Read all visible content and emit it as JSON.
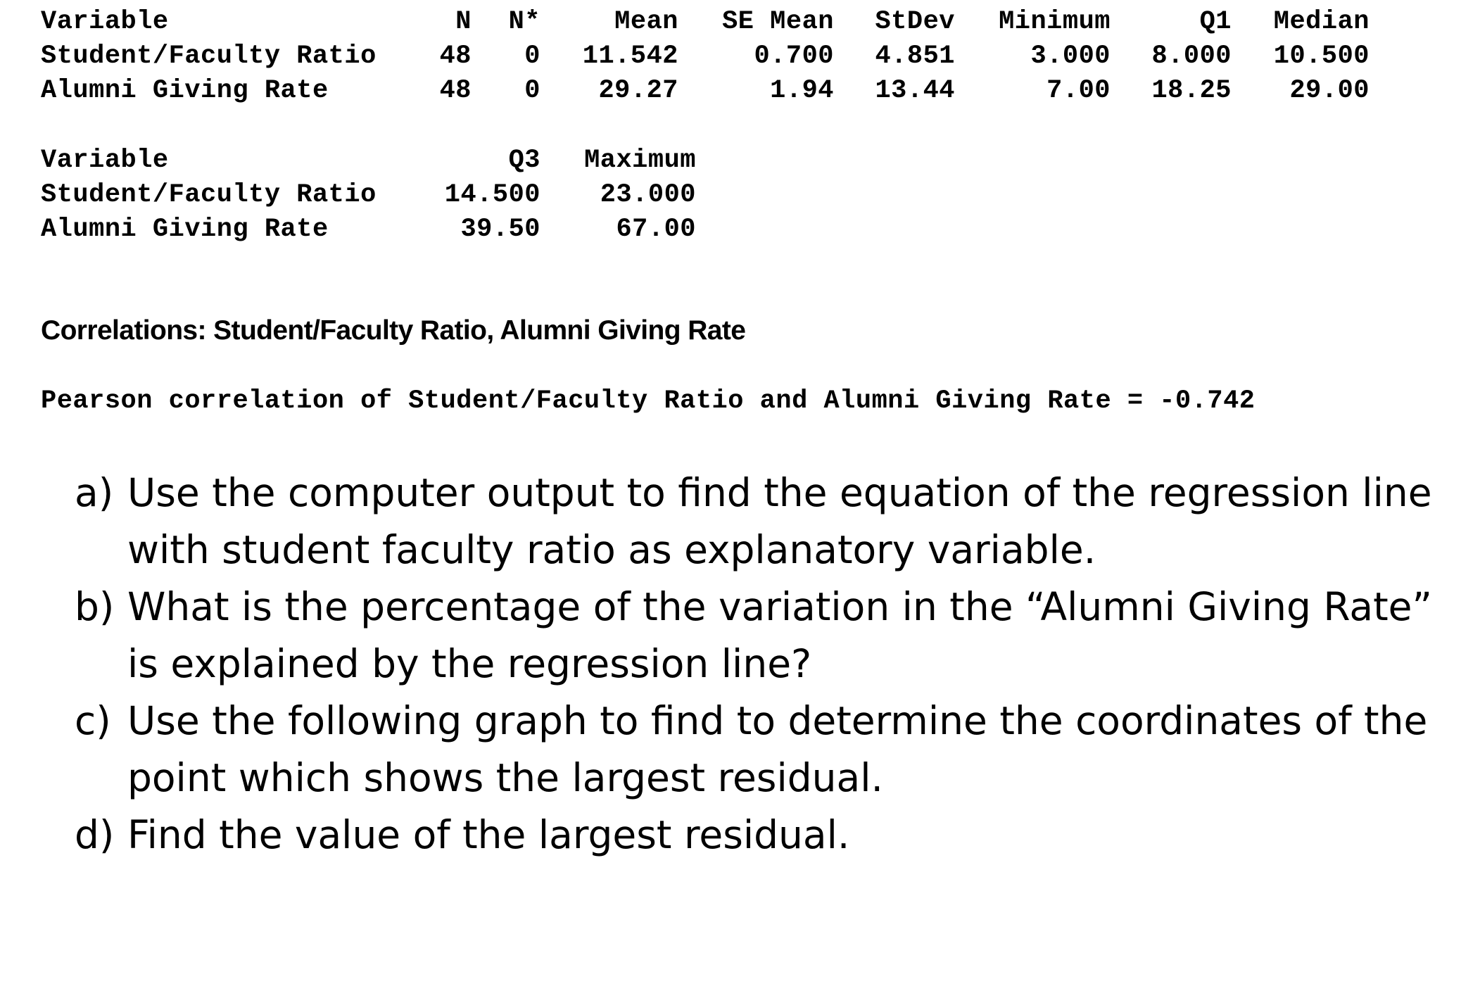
{
  "stats_table_1": {
    "headers": [
      "Variable",
      "N",
      "N*",
      "Mean",
      "SE Mean",
      "StDev",
      "Minimum",
      "Q1",
      "Median"
    ],
    "rows": [
      [
        "Student/Faculty Ratio",
        "48",
        "0",
        "11.542",
        "0.700",
        "4.851",
        "3.000",
        "8.000",
        "10.500"
      ],
      [
        "Alumni Giving Rate",
        "48",
        "0",
        "29.27",
        "1.94",
        "13.44",
        "7.00",
        "18.25",
        "29.00"
      ]
    ]
  },
  "stats_table_2": {
    "headers": [
      "Variable",
      "Q3",
      "Maximum"
    ],
    "rows": [
      [
        "Student/Faculty Ratio",
        "14.500",
        "23.000"
      ],
      [
        "Alumni Giving Rate",
        "39.50",
        "67.00"
      ]
    ]
  },
  "correlations": {
    "heading": "Correlations: Student/Faculty Ratio, Alumni Giving Rate",
    "pearson_line": "Pearson correlation of Student/Faculty Ratio and Alumni Giving Rate = -0.742"
  },
  "questions": [
    {
      "marker": "a)",
      "text": "Use the computer output to find the equation of the regression line with student faculty ratio as explanatory variable."
    },
    {
      "marker": "b)",
      "text": "What is the percentage of the variation in the “Alumni Giving Rate” is explained by the regression line?"
    },
    {
      "marker": "c)",
      "text": "Use the following graph to find to determine the coordinates of the point which shows the largest residual."
    },
    {
      "marker": "d)",
      "text": "Find the value of the largest residual."
    }
  ]
}
